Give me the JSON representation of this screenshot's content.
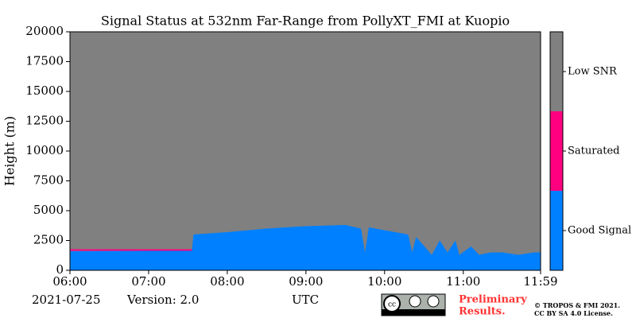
{
  "chart_data": {
    "type": "heatmap",
    "title": "Signal Status at 532nm Far-Range from PollyXT_FMI at Kuopio",
    "ylabel": "Height (m)",
    "xlabel": "UTC",
    "xlim": [
      6,
      11.983
    ],
    "xticks": [
      {
        "value": 6,
        "label": "06:00"
      },
      {
        "value": 7,
        "label": "07:00"
      },
      {
        "value": 8,
        "label": "08:00"
      },
      {
        "value": 9,
        "label": "09:00"
      },
      {
        "value": 10,
        "label": "10:00"
      },
      {
        "value": 11,
        "label": "11:00"
      },
      {
        "value": 11.983,
        "label": "11:59"
      }
    ],
    "ylim": [
      0,
      20000
    ],
    "yticks": [
      0,
      2500,
      5000,
      7500,
      10000,
      12500,
      15000,
      17500,
      20000
    ],
    "status_levels": [
      {
        "label": "Good Signal",
        "color": "#0080ff"
      },
      {
        "label": "Saturated",
        "color": "#ff0080"
      },
      {
        "label": "Low SNR",
        "color": "#808080"
      }
    ],
    "good_signal_top": {
      "x": [
        6,
        7.55,
        7.57,
        8,
        8.5,
        9,
        9.5,
        9.7,
        9.75,
        9.8,
        10.3,
        10.35,
        10.4,
        10.6,
        10.7,
        10.8,
        10.9,
        10.95,
        11.1,
        11.2,
        11.35,
        11.5,
        11.7,
        11.9,
        11.983
      ],
      "values": [
        1600,
        1650,
        3000,
        3200,
        3500,
        3700,
        3800,
        3500,
        1500,
        3600,
        3000,
        1500,
        2800,
        1300,
        2500,
        1500,
        2500,
        1300,
        2000,
        1300,
        1500,
        1500,
        1300,
        1500,
        1500
      ]
    },
    "saturated_layer": {
      "x": [
        6,
        7.55
      ],
      "values": [
        1700,
        1700
      ]
    },
    "date": "2021-07-25",
    "version": "Version: 2.0",
    "notice": [
      "Preliminary",
      "Results."
    ],
    "copyright": [
      "© TROPOS & FMI 2021.",
      "CC BY SA 4.0 License."
    ]
  }
}
